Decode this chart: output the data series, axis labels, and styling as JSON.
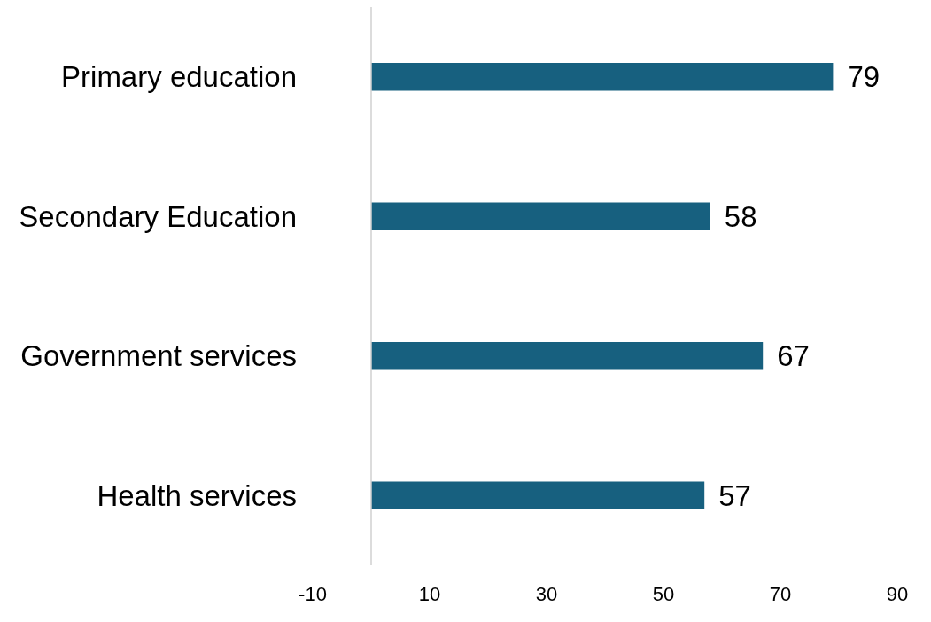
{
  "chart_data": {
    "type": "bar",
    "orientation": "horizontal",
    "categories": [
      "Primary education",
      "Secondary Education",
      "Government services",
      "Health services"
    ],
    "values": [
      79,
      58,
      67,
      57
    ],
    "color": "#17607f",
    "xlim": [
      -10,
      90
    ],
    "xticks": [
      -10,
      10,
      30,
      50,
      70,
      90
    ],
    "data_labels": true,
    "grid": false,
    "legend": false
  }
}
